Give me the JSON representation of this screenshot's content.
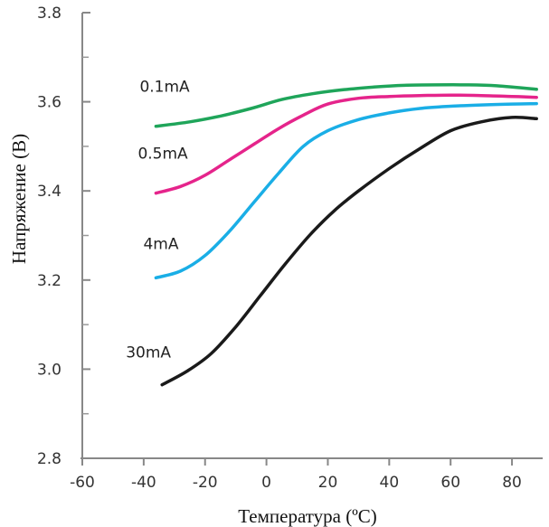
{
  "chart_data": {
    "type": "line",
    "xlabel": "Температура (ºC)",
    "ylabel": "Напряжение (В)",
    "xlim": [
      -60,
      90
    ],
    "ylim": [
      2.8,
      3.8
    ],
    "x_ticks": [
      "-60",
      "-40",
      "-20",
      "0",
      "20",
      "40",
      "60",
      "80"
    ],
    "x_tick_values": [
      -60,
      -40,
      -20,
      0,
      20,
      40,
      60,
      80
    ],
    "y_ticks": [
      "2.8",
      "3.0",
      "3.2",
      "3.4",
      "3.6",
      "3.8"
    ],
    "y_tick_values": [
      2.8,
      3.0,
      3.2,
      3.4,
      3.6,
      3.8
    ],
    "y_minor_ticks": [
      2.9,
      3.1,
      3.3,
      3.5,
      3.7
    ],
    "grid": false,
    "series": [
      {
        "name": "0.1mA",
        "color": "#1fa55a",
        "x": [
          -36,
          -25,
          -15,
          -5,
          5,
          15,
          25,
          35,
          45,
          55,
          65,
          75,
          88
        ],
        "y": [
          3.545,
          3.555,
          3.568,
          3.585,
          3.605,
          3.618,
          3.627,
          3.633,
          3.637,
          3.638,
          3.638,
          3.636,
          3.628
        ]
      },
      {
        "name": "0.5mA",
        "color": "#e5248b",
        "x": [
          -36,
          -28,
          -20,
          -12,
          -4,
          4,
          12,
          20,
          30,
          40,
          50,
          60,
          70,
          80,
          88
        ],
        "y": [
          3.395,
          3.41,
          3.435,
          3.47,
          3.505,
          3.54,
          3.57,
          3.595,
          3.608,
          3.612,
          3.614,
          3.615,
          3.614,
          3.612,
          3.61
        ]
      },
      {
        "name": "4mA",
        "color": "#1aaee6",
        "x": [
          -36,
          -28,
          -20,
          -12,
          -4,
          4,
          12,
          20,
          30,
          40,
          50,
          60,
          70,
          80,
          88
        ],
        "y": [
          3.205,
          3.22,
          3.255,
          3.31,
          3.375,
          3.44,
          3.5,
          3.535,
          3.56,
          3.575,
          3.585,
          3.59,
          3.593,
          3.595,
          3.596
        ]
      },
      {
        "name": "30mA",
        "color": "#1a1a1a",
        "x": [
          -34,
          -26,
          -18,
          -10,
          -2,
          6,
          14,
          22,
          30,
          40,
          50,
          60,
          70,
          80,
          88
        ],
        "y": [
          2.965,
          2.995,
          3.035,
          3.095,
          3.165,
          3.235,
          3.3,
          3.355,
          3.4,
          3.45,
          3.495,
          3.535,
          3.555,
          3.565,
          3.562
        ]
      }
    ]
  }
}
